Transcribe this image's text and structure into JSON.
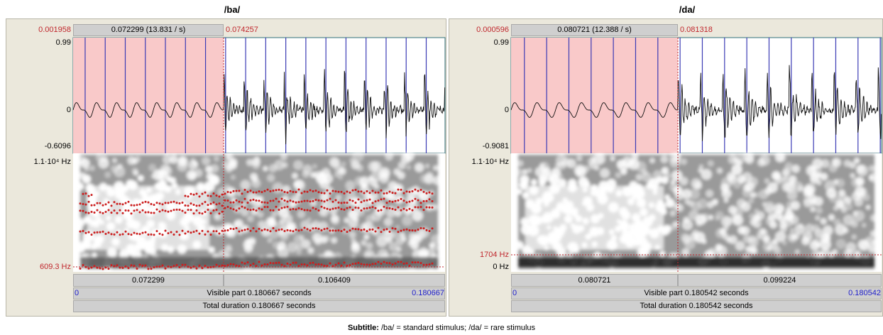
{
  "panels": [
    {
      "title": "/ba/",
      "selection_start": "0.001958",
      "selection_duration": "0.072299 (13.831 / s)",
      "selection_end": "0.074257",
      "amp_top": "0.99",
      "amp_zero": "0",
      "amp_bottom": "-0.6096",
      "freq_top": "1.1·10⁴ Hz",
      "freq_marker": "609.3 Hz",
      "segment_left": "0.072299",
      "segment_right": "0.106409",
      "visible_start": "0",
      "visible_label": "Visible part 0.180667 seconds",
      "visible_end": "0.180667",
      "total_label": "Total duration 0.180667 seconds"
    },
    {
      "title": "/da/",
      "selection_start": "0.000596",
      "selection_duration": "0.080721 (12.388 / s)",
      "selection_end": "0.081318",
      "amp_top": "0.99",
      "amp_zero": "0",
      "amp_bottom": "-0.9081",
      "freq_top": "1.1·10⁴ Hz",
      "freq_marker": "1704 Hz",
      "freq_bottom": "0 Hz",
      "segment_left": "0.080721",
      "segment_right": "0.099224",
      "visible_start": "0",
      "visible_label": "Visible part 0.180542 seconds",
      "visible_end": "0.180542",
      "total_label": "Total duration 0.180542 seconds"
    }
  ],
  "subtitle": {
    "label": "Subtitle:",
    "text": "/ba/ = standard stimulus; /da/ = rare stimulus"
  }
}
